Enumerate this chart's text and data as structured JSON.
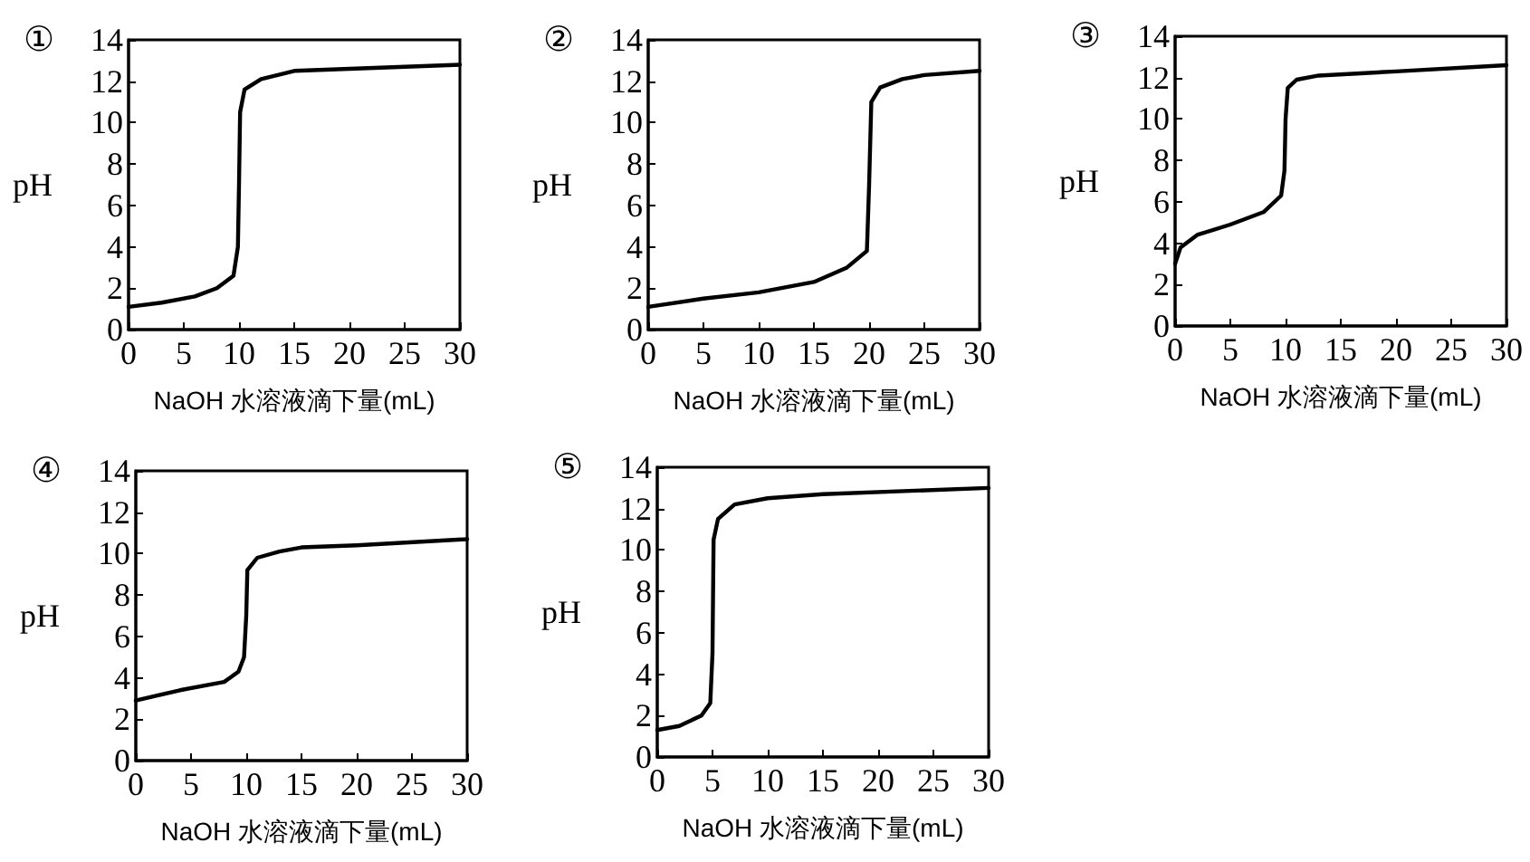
{
  "chart_data": [
    {
      "type": "line",
      "title": "①",
      "xlabel": "NaOH 水溶液滴下量(mL)",
      "ylabel": "pH",
      "xlim": [
        0,
        30
      ],
      "ylim": [
        0,
        14
      ],
      "xticks": [
        0,
        5,
        10,
        15,
        20,
        25,
        30
      ],
      "yticks": [
        0,
        2,
        4,
        6,
        8,
        10,
        12,
        14
      ],
      "grid": false,
      "marker": "none",
      "line_style": "solid",
      "series": [
        {
          "color": "#000000",
          "x": [
            0,
            3,
            6,
            8,
            9.5,
            9.9,
            10,
            10.1,
            10.5,
            12,
            15,
            20,
            30
          ],
          "values": [
            1.1,
            1.3,
            1.6,
            2.0,
            2.6,
            4,
            7,
            10.5,
            11.6,
            12.1,
            12.5,
            12.6,
            12.8
          ]
        }
      ]
    },
    {
      "type": "line",
      "title": "②",
      "xlabel": "NaOH 水溶液滴下量(mL)",
      "ylabel": "pH",
      "xlim": [
        0,
        30
      ],
      "ylim": [
        0,
        14
      ],
      "xticks": [
        0,
        5,
        10,
        15,
        20,
        25,
        30
      ],
      "yticks": [
        0,
        2,
        4,
        6,
        8,
        10,
        12,
        14
      ],
      "grid": false,
      "marker": "none",
      "line_style": "solid",
      "series": [
        {
          "color": "#000000",
          "x": [
            0,
            5,
            10,
            15,
            18,
            19.8,
            20,
            20.2,
            21,
            23,
            25,
            30
          ],
          "values": [
            1.1,
            1.5,
            1.8,
            2.3,
            3.0,
            3.8,
            7,
            11,
            11.7,
            12.1,
            12.3,
            12.5
          ]
        }
      ]
    },
    {
      "type": "line",
      "title": "③",
      "xlabel": "NaOH 水溶液滴下量(mL)",
      "ylabel": "pH",
      "xlim": [
        0,
        30
      ],
      "ylim": [
        0,
        14
      ],
      "xticks": [
        0,
        5,
        10,
        15,
        20,
        25,
        30
      ],
      "yticks": [
        0,
        2,
        4,
        6,
        8,
        10,
        12,
        14
      ],
      "grid": false,
      "marker": "none",
      "line_style": "solid",
      "series": [
        {
          "color": "#000000",
          "x": [
            0,
            0.5,
            2,
            5,
            8,
            9.6,
            9.9,
            10,
            10.2,
            11,
            13,
            20,
            30
          ],
          "values": [
            3.0,
            3.8,
            4.4,
            4.9,
            5.5,
            6.3,
            7.5,
            10,
            11.5,
            11.9,
            12.1,
            12.3,
            12.6
          ]
        }
      ]
    },
    {
      "type": "line",
      "title": "④",
      "xlabel": "NaOH 水溶液滴下量(mL)",
      "ylabel": "pH",
      "xlim": [
        0,
        30
      ],
      "ylim": [
        0,
        14
      ],
      "xticks": [
        0,
        5,
        10,
        15,
        20,
        25,
        30
      ],
      "yticks": [
        0,
        2,
        4,
        6,
        8,
        10,
        12,
        14
      ],
      "grid": false,
      "marker": "none",
      "line_style": "solid",
      "series": [
        {
          "color": "#000000",
          "x": [
            0,
            4,
            8,
            9.3,
            9.8,
            10,
            10.1,
            11,
            13,
            15,
            20,
            30
          ],
          "values": [
            2.9,
            3.4,
            3.8,
            4.3,
            5,
            7,
            9.2,
            9.8,
            10.1,
            10.3,
            10.4,
            10.7
          ]
        }
      ]
    },
    {
      "type": "line",
      "title": "⑤",
      "xlabel": "NaOH 水溶液滴下量(mL)",
      "ylabel": "pH",
      "xlim": [
        0,
        30
      ],
      "ylim": [
        0,
        14
      ],
      "xticks": [
        0,
        5,
        10,
        15,
        20,
        25,
        30
      ],
      "yticks": [
        0,
        2,
        4,
        6,
        8,
        10,
        12,
        14
      ],
      "grid": false,
      "marker": "none",
      "line_style": "solid",
      "series": [
        {
          "color": "#000000",
          "x": [
            0,
            2,
            4,
            4.8,
            5,
            5.1,
            5.5,
            7,
            10,
            15,
            30
          ],
          "values": [
            1.3,
            1.5,
            2.0,
            2.6,
            5,
            10.5,
            11.5,
            12.2,
            12.5,
            12.7,
            13.0
          ]
        }
      ]
    }
  ]
}
